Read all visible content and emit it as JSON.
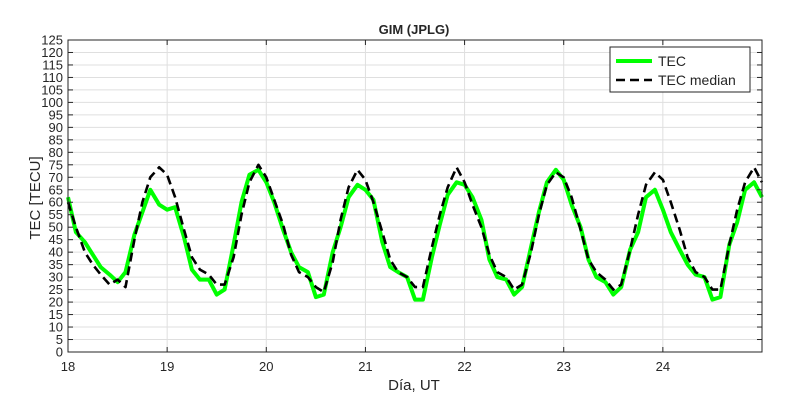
{
  "chart_data": {
    "type": "line",
    "title": "GIM (JPLG)",
    "xlabel": "Día, UT",
    "ylabel": "TEC [TECU]",
    "xlim": [
      18,
      25
    ],
    "ylim": [
      0,
      125
    ],
    "x_ticks": [
      18,
      19,
      20,
      21,
      22,
      23,
      24
    ],
    "y_ticks": [
      0,
      5,
      10,
      15,
      20,
      25,
      30,
      35,
      40,
      45,
      50,
      55,
      60,
      65,
      70,
      75,
      80,
      85,
      90,
      95,
      100,
      105,
      110,
      115,
      120,
      125
    ],
    "grid": true,
    "legend_position": "top-right",
    "series": [
      {
        "name": "TEC",
        "color": "#00ff00",
        "style": "solid",
        "points": [
          [
            18.0,
            62
          ],
          [
            18.08,
            48
          ],
          [
            18.17,
            44
          ],
          [
            18.25,
            39
          ],
          [
            18.33,
            34
          ],
          [
            18.42,
            31
          ],
          [
            18.5,
            28
          ],
          [
            18.58,
            32
          ],
          [
            18.67,
            47
          ],
          [
            18.75,
            56
          ],
          [
            18.83,
            65
          ],
          [
            18.92,
            59
          ],
          [
            19.0,
            57
          ],
          [
            19.08,
            58
          ],
          [
            19.17,
            46
          ],
          [
            19.25,
            33
          ],
          [
            19.33,
            29
          ],
          [
            19.42,
            29
          ],
          [
            19.5,
            23
          ],
          [
            19.58,
            25
          ],
          [
            19.67,
            43
          ],
          [
            19.75,
            60
          ],
          [
            19.83,
            71
          ],
          [
            19.92,
            73
          ],
          [
            20.0,
            68
          ],
          [
            20.08,
            60
          ],
          [
            20.17,
            49
          ],
          [
            20.25,
            40
          ],
          [
            20.33,
            34
          ],
          [
            20.42,
            32
          ],
          [
            20.5,
            22
          ],
          [
            20.58,
            23
          ],
          [
            20.67,
            40
          ],
          [
            20.75,
            50
          ],
          [
            20.83,
            62
          ],
          [
            20.92,
            67
          ],
          [
            21.0,
            65
          ],
          [
            21.08,
            61
          ],
          [
            21.17,
            44
          ],
          [
            21.25,
            34
          ],
          [
            21.33,
            32
          ],
          [
            21.42,
            30
          ],
          [
            21.5,
            21
          ],
          [
            21.58,
            21
          ],
          [
            21.67,
            38
          ],
          [
            21.75,
            51
          ],
          [
            21.83,
            63
          ],
          [
            21.92,
            68
          ],
          [
            22.0,
            67
          ],
          [
            22.08,
            62
          ],
          [
            22.17,
            53
          ],
          [
            22.25,
            37
          ],
          [
            22.33,
            30
          ],
          [
            22.42,
            29
          ],
          [
            22.5,
            23
          ],
          [
            22.58,
            26
          ],
          [
            22.67,
            42
          ],
          [
            22.75,
            56
          ],
          [
            22.83,
            68
          ],
          [
            22.92,
            73
          ],
          [
            23.0,
            69
          ],
          [
            23.08,
            59
          ],
          [
            23.17,
            50
          ],
          [
            23.25,
            37
          ],
          [
            23.33,
            30
          ],
          [
            23.42,
            28
          ],
          [
            23.5,
            23
          ],
          [
            23.58,
            26
          ],
          [
            23.67,
            41
          ],
          [
            23.75,
            48
          ],
          [
            23.83,
            62
          ],
          [
            23.92,
            65
          ],
          [
            24.0,
            57
          ],
          [
            24.08,
            48
          ],
          [
            24.17,
            41
          ],
          [
            24.25,
            35
          ],
          [
            24.33,
            31
          ],
          [
            24.42,
            30
          ],
          [
            24.5,
            21
          ],
          [
            24.58,
            22
          ],
          [
            24.67,
            43
          ],
          [
            24.75,
            52
          ],
          [
            24.83,
            65
          ],
          [
            24.92,
            68
          ],
          [
            25.0,
            62
          ]
        ]
      },
      {
        "name": "TEC median",
        "color": "#000000",
        "style": "dashed",
        "points": [
          [
            18.0,
            60
          ],
          [
            18.08,
            50
          ],
          [
            18.17,
            40
          ],
          [
            18.25,
            35
          ],
          [
            18.33,
            31
          ],
          [
            18.42,
            27
          ],
          [
            18.5,
            29
          ],
          [
            18.58,
            26
          ],
          [
            18.67,
            45
          ],
          [
            18.75,
            60
          ],
          [
            18.83,
            70
          ],
          [
            18.92,
            74
          ],
          [
            19.0,
            71
          ],
          [
            19.08,
            62
          ],
          [
            19.17,
            49
          ],
          [
            19.25,
            38
          ],
          [
            19.33,
            33
          ],
          [
            19.42,
            31
          ],
          [
            19.5,
            27
          ],
          [
            19.58,
            27
          ],
          [
            19.67,
            38
          ],
          [
            19.75,
            55
          ],
          [
            19.83,
            68
          ],
          [
            19.92,
            75
          ],
          [
            20.0,
            70
          ],
          [
            20.08,
            61
          ],
          [
            20.17,
            51
          ],
          [
            20.25,
            39
          ],
          [
            20.33,
            32
          ],
          [
            20.42,
            30
          ],
          [
            20.5,
            26
          ],
          [
            20.58,
            24
          ],
          [
            20.67,
            36
          ],
          [
            20.75,
            53
          ],
          [
            20.83,
            66
          ],
          [
            20.92,
            73
          ],
          [
            21.0,
            69
          ],
          [
            21.08,
            60
          ],
          [
            21.17,
            48
          ],
          [
            21.25,
            37
          ],
          [
            21.33,
            32
          ],
          [
            21.42,
            30
          ],
          [
            21.5,
            26
          ],
          [
            21.58,
            26
          ],
          [
            21.67,
            42
          ],
          [
            21.75,
            55
          ],
          [
            21.83,
            66
          ],
          [
            21.92,
            74
          ],
          [
            22.0,
            68
          ],
          [
            22.08,
            59
          ],
          [
            22.17,
            50
          ],
          [
            22.25,
            39
          ],
          [
            22.33,
            32
          ],
          [
            22.42,
            30
          ],
          [
            22.5,
            25
          ],
          [
            22.58,
            27
          ],
          [
            22.67,
            40
          ],
          [
            22.75,
            55
          ],
          [
            22.83,
            67
          ],
          [
            22.92,
            72
          ],
          [
            23.0,
            70
          ],
          [
            23.08,
            62
          ],
          [
            23.17,
            49
          ],
          [
            23.25,
            37
          ],
          [
            23.33,
            32
          ],
          [
            23.42,
            29
          ],
          [
            23.5,
            25
          ],
          [
            23.58,
            27
          ],
          [
            23.67,
            41
          ],
          [
            23.75,
            55
          ],
          [
            23.83,
            67
          ],
          [
            23.92,
            72
          ],
          [
            24.0,
            69
          ],
          [
            24.08,
            60
          ],
          [
            24.17,
            49
          ],
          [
            24.25,
            38
          ],
          [
            24.33,
            32
          ],
          [
            24.42,
            30
          ],
          [
            24.5,
            25
          ],
          [
            24.58,
            25
          ],
          [
            24.67,
            43
          ],
          [
            24.75,
            57
          ],
          [
            24.83,
            68
          ],
          [
            24.92,
            74
          ],
          [
            25.0,
            68
          ]
        ]
      }
    ]
  }
}
